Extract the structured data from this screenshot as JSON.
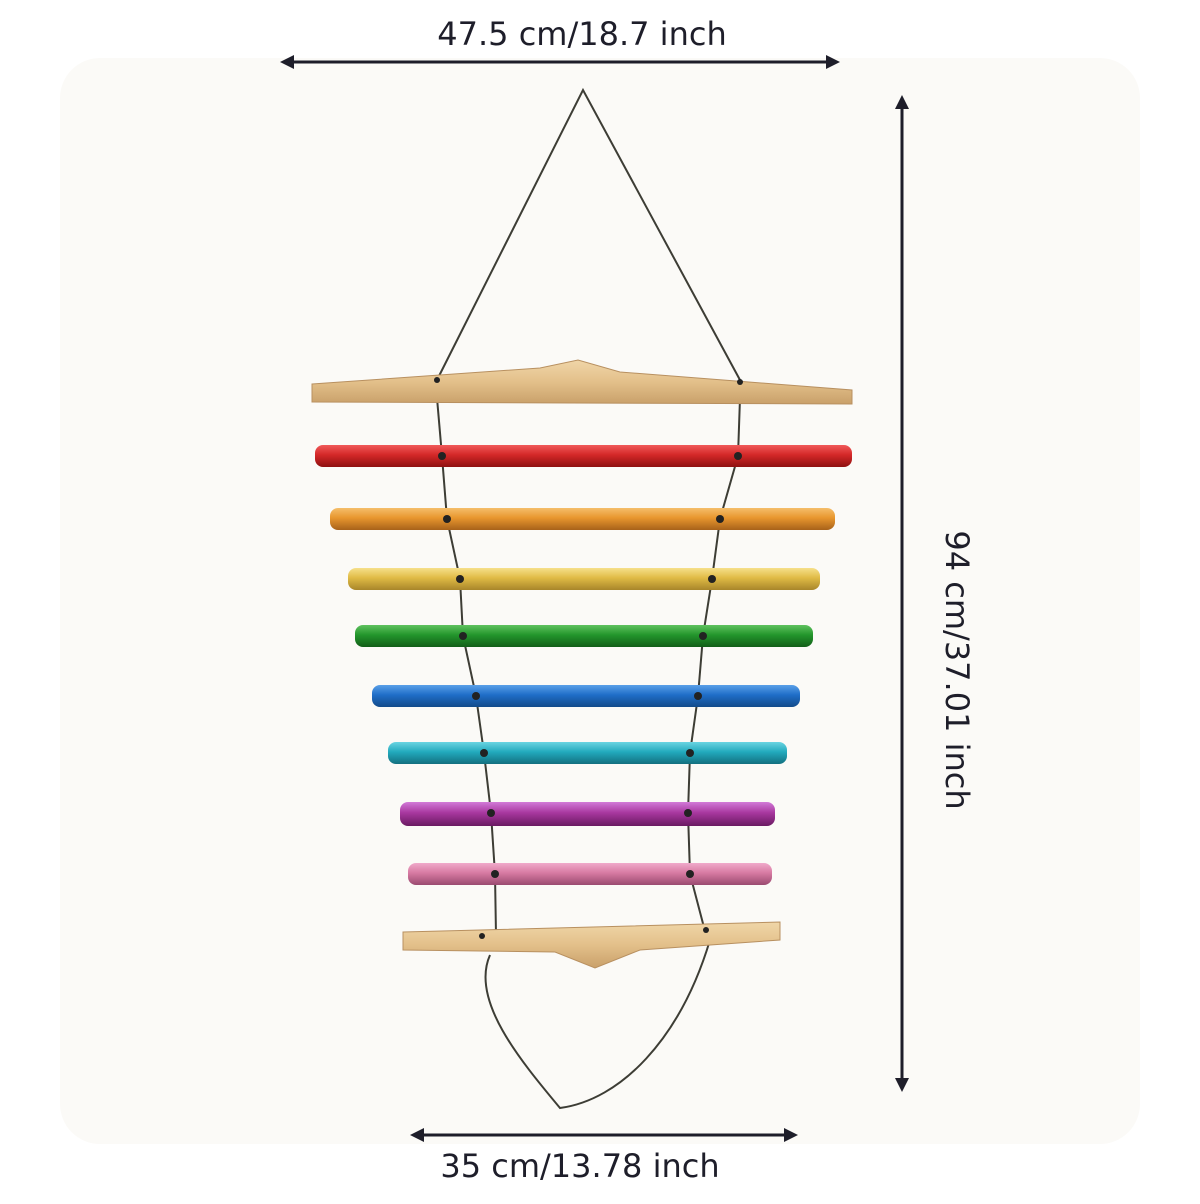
{
  "dimensions": {
    "top_width": "47.5 cm/18.7 inch",
    "height": "94 cm/37.01 inch",
    "bottom_width": "35 cm/13.78 inch"
  }
}
